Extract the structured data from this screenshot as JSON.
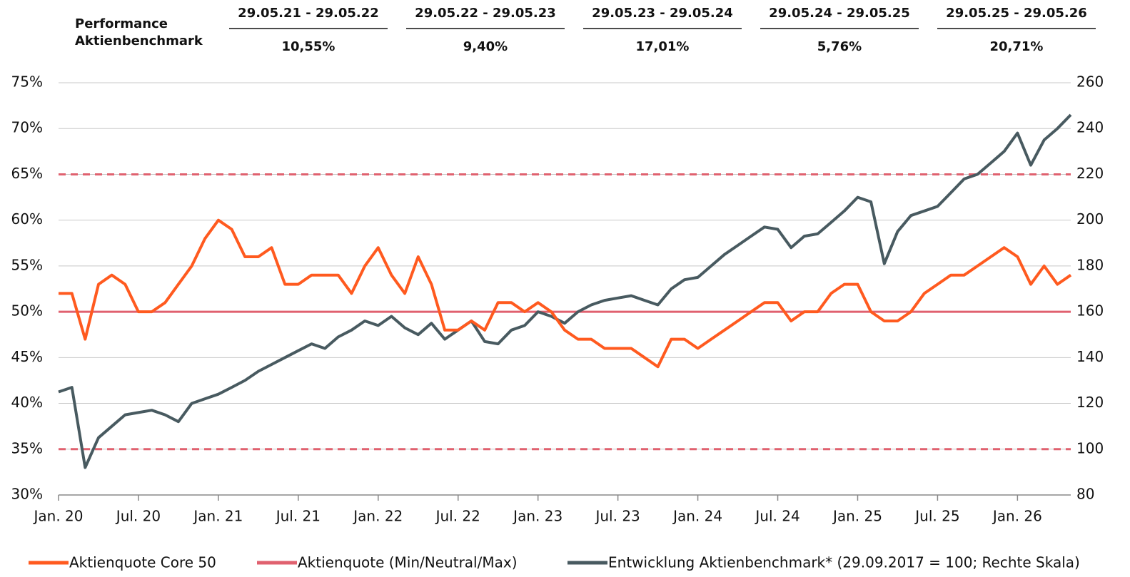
{
  "chart_data": {
    "type": "line",
    "performance": {
      "heading": [
        "Performance",
        "Aktienbenchmark"
      ],
      "periods": [
        "29.05.21 - 29.05.22",
        "29.05.22 - 29.05.23",
        "29.05.23 - 29.05.24",
        "29.05.24 - 29.05.25",
        "29.05.25 - 29.05.26"
      ],
      "values": [
        "10,55%",
        "9,40%",
        "17,01%",
        "5,76%",
        "20,71%"
      ]
    },
    "x": [
      "2020-01",
      "2020-02",
      "2020-03",
      "2020-04",
      "2020-05",
      "2020-06",
      "2020-07",
      "2020-08",
      "2020-09",
      "2020-10",
      "2020-11",
      "2020-12",
      "2021-01",
      "2021-02",
      "2021-03",
      "2021-04",
      "2021-05",
      "2021-06",
      "2021-07",
      "2021-08",
      "2021-09",
      "2021-10",
      "2021-11",
      "2021-12",
      "2022-01",
      "2022-02",
      "2022-03",
      "2022-04",
      "2022-05",
      "2022-06",
      "2022-07",
      "2022-08",
      "2022-09",
      "2022-10",
      "2022-11",
      "2022-12",
      "2023-01",
      "2023-02",
      "2023-03",
      "2023-04",
      "2023-05",
      "2023-06",
      "2023-07",
      "2023-08",
      "2023-09",
      "2023-10",
      "2023-11",
      "2023-12",
      "2024-01",
      "2024-02",
      "2024-03",
      "2024-04",
      "2024-05",
      "2024-06",
      "2024-07",
      "2024-08",
      "2024-09",
      "2024-10",
      "2024-11",
      "2024-12",
      "2025-01",
      "2025-02",
      "2025-03",
      "2025-04",
      "2025-05",
      "2025-06",
      "2025-07",
      "2025-08",
      "2025-09",
      "2025-10",
      "2025-11",
      "2025-12",
      "2026-01",
      "2026-02",
      "2026-03",
      "2026-04",
      "2026-05"
    ],
    "xlim": [
      "2020-01",
      "2026-05"
    ],
    "xticks": [
      {
        "value": "2020-01",
        "label": "Jan. 20"
      },
      {
        "value": "2020-07",
        "label": "Jul. 20"
      },
      {
        "value": "2021-01",
        "label": "Jan. 21"
      },
      {
        "value": "2021-07",
        "label": "Jul. 21"
      },
      {
        "value": "2022-01",
        "label": "Jan. 22"
      },
      {
        "value": "2022-07",
        "label": "Jul. 22"
      },
      {
        "value": "2023-01",
        "label": "Jan. 23"
      },
      {
        "value": "2023-07",
        "label": "Jul. 23"
      },
      {
        "value": "2024-01",
        "label": "Jan. 24"
      },
      {
        "value": "2024-07",
        "label": "Jul. 24"
      },
      {
        "value": "2025-01",
        "label": "Jan. 25"
      },
      {
        "value": "2025-07",
        "label": "Jul. 25"
      },
      {
        "value": "2026-01",
        "label": "Jan. 26"
      }
    ],
    "ylim": [
      30,
      75
    ],
    "yticks": [
      {
        "value": 30,
        "label": "30%"
      },
      {
        "value": 35,
        "label": "35%"
      },
      {
        "value": 40,
        "label": "40%"
      },
      {
        "value": 45,
        "label": "45%"
      },
      {
        "value": 50,
        "label": "50%"
      },
      {
        "value": 55,
        "label": "55%"
      },
      {
        "value": 60,
        "label": "60%"
      },
      {
        "value": 65,
        "label": "65%"
      },
      {
        "value": 70,
        "label": "70%"
      },
      {
        "value": 75,
        "label": "75%"
      }
    ],
    "y2lim": [
      80,
      260
    ],
    "y2ticks": [
      80,
      100,
      120,
      140,
      160,
      180,
      200,
      220,
      240,
      260
    ],
    "grid": true,
    "reference_lines": {
      "name": "Aktienquote (Min/Neutral/Max)",
      "color": "#e0616f",
      "values": [
        35,
        50,
        65
      ],
      "dashed": [
        true,
        false,
        true
      ]
    },
    "series": [
      {
        "name": "Aktienquote Core 50",
        "color": "#ff5a1f",
        "values": [
          52,
          52,
          47,
          53,
          54,
          53,
          50,
          50,
          51,
          53,
          55,
          58,
          60,
          59,
          56,
          56,
          57,
          53,
          53,
          54,
          54,
          54,
          52,
          55,
          57,
          54,
          52,
          56,
          53,
          48,
          48,
          49,
          48,
          51,
          51,
          50,
          51,
          50,
          48,
          47,
          47,
          46,
          46,
          46,
          45,
          44,
          47,
          47,
          46,
          47,
          48,
          49,
          50,
          51,
          51,
          49,
          50,
          50,
          52,
          53,
          53,
          50,
          49,
          49,
          50,
          52,
          53,
          54,
          54,
          55,
          56,
          57,
          56,
          53,
          55,
          53,
          54
        ]
      },
      {
        "name": "Entwicklung Aktienbenchmark* (29.09.2017 = 100; Rechte Skala)",
        "color": "#485a60",
        "axis": "y2",
        "values": [
          125,
          127,
          92,
          105,
          110,
          115,
          116,
          117,
          115,
          112,
          120,
          122,
          124,
          127,
          130,
          134,
          137,
          140,
          143,
          146,
          144,
          149,
          152,
          156,
          154,
          158,
          153,
          150,
          155,
          148,
          152,
          156,
          147,
          146,
          152,
          154,
          160,
          158,
          155,
          160,
          163,
          165,
          166,
          167,
          165,
          163,
          170,
          174,
          175,
          180,
          185,
          189,
          193,
          197,
          196,
          188,
          193,
          194,
          199,
          204,
          210,
          208,
          181,
          195,
          202,
          204,
          206,
          212,
          218,
          220,
          225,
          230,
          238,
          224,
          235,
          240,
          246
        ]
      }
    ]
  }
}
